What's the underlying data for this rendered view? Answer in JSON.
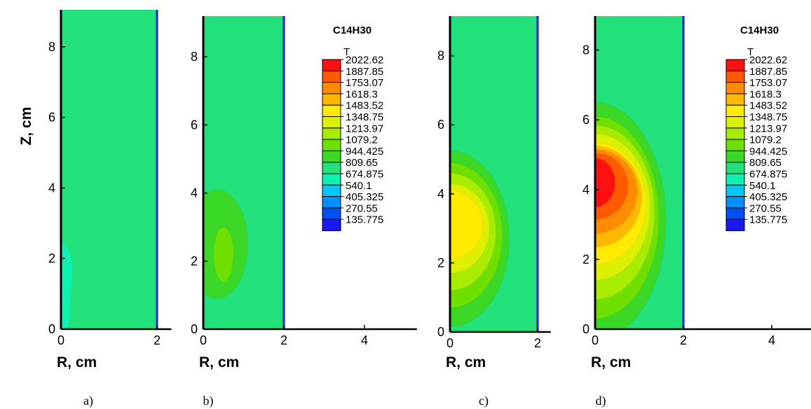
{
  "chart_data": [
    {
      "panel": "a)",
      "type": "heatmap",
      "xlabel": "R, cm",
      "ylabel": "Z, cm",
      "xlim": [
        0,
        2.3
      ],
      "ylim": [
        0,
        9.4
      ],
      "x_ticks": [
        "0",
        "2"
      ],
      "y_ticks": [
        "0",
        "2",
        "4",
        "6",
        "8"
      ],
      "background_level": 809.65,
      "features": [
        {
          "shape": "thin cool region near axis",
          "level": 674.875,
          "r_max": 0.25,
          "z_range": [
            0,
            2.5
          ]
        }
      ],
      "wall": {
        "r": 2,
        "level": 135.775
      }
    },
    {
      "panel": "b)",
      "type": "heatmap",
      "title": "C14H30",
      "xlabel": "R, cm",
      "xlim": [
        0,
        5.3
      ],
      "ylim": [
        0,
        9.4
      ],
      "x_ticks": [
        "0",
        "2",
        "4"
      ],
      "y_ticks": [
        "0",
        "2",
        "4",
        "6",
        "8"
      ],
      "background_level": 809.65,
      "features": [
        {
          "shape": "ellipse",
          "level": 944.425,
          "r_center": 0.35,
          "z_center": 2.5,
          "r_radius": 0.75,
          "z_radius": 1.6
        },
        {
          "shape": "ellipse",
          "level": 1079.2,
          "r_center": 0.5,
          "z_center": 2.2,
          "r_radius": 0.25,
          "z_radius": 0.8
        }
      ],
      "wall": {
        "r": 2,
        "level": 135.775
      },
      "legend": {
        "title": "T",
        "levels": [
          2022.62,
          1887.85,
          1753.07,
          1618.3,
          1483.52,
          1348.75,
          1213.97,
          1079.2,
          944.425,
          809.65,
          674.875,
          540.1,
          405.325,
          270.55,
          135.775
        ],
        "labels": [
          "2022.62",
          "1887.85",
          "1753.07",
          "1618.3",
          "1483.52",
          "1348.75",
          "1213.97",
          "1079.2",
          "944.425",
          "809.65",
          "674.875",
          "540.1",
          "405.325",
          "270.55",
          "135.775"
        ],
        "colors": [
          "#ff1010",
          "#ff5a00",
          "#ff8c00",
          "#ffb800",
          "#ffea00",
          "#dcf000",
          "#a8ec00",
          "#6ee000",
          "#3cd828",
          "#22e07a",
          "#10f0b0",
          "#00c8ff",
          "#0090ff",
          "#0050f5",
          "#1a18f0"
        ]
      }
    },
    {
      "panel": "c)",
      "type": "heatmap",
      "xlabel": "R, cm",
      "xlim": [
        0,
        2.3
      ],
      "ylim": [
        0,
        9.4
      ],
      "x_ticks": [
        "0",
        "2"
      ],
      "y_ticks": [
        "0",
        "2",
        "4",
        "6",
        "8"
      ],
      "background_level": 809.65,
      "features": [
        {
          "shape": "ellipse",
          "level": 944.425,
          "r_center": 0,
          "z_center": 2.7,
          "r_radius": 1.35,
          "z_radius": 2.55
        },
        {
          "shape": "ellipse",
          "level": 1079.2,
          "r_center": 0,
          "z_center": 2.8,
          "r_radius": 1.2,
          "z_radius": 2.1
        },
        {
          "shape": "ellipse",
          "level": 1213.97,
          "r_center": 0,
          "z_center": 2.9,
          "r_radius": 1.05,
          "z_radius": 1.7
        },
        {
          "shape": "ellipse",
          "level": 1348.75,
          "r_center": 0,
          "z_center": 3.0,
          "r_radius": 0.9,
          "z_radius": 1.3
        },
        {
          "shape": "ellipse",
          "level": 1483.52,
          "r_center": 0,
          "z_center": 3.1,
          "r_radius": 0.75,
          "z_radius": 1.0
        }
      ],
      "wall": {
        "r": 2,
        "level": 135.775
      }
    },
    {
      "panel": "d)",
      "type": "heatmap",
      "title": "C14H30",
      "xlabel": "R, cm",
      "xlim": [
        0,
        5.3
      ],
      "ylim": [
        0,
        9.4
      ],
      "x_ticks": [
        "0",
        "2",
        "4"
      ],
      "y_ticks": [
        "0",
        "2",
        "4",
        "6",
        "8"
      ],
      "background_level": 809.65,
      "features": [
        {
          "shape": "ellipse",
          "level": 944.425,
          "r_center": 0,
          "z_center": 3.1,
          "r_radius": 1.6,
          "z_radius": 3.4
        },
        {
          "shape": "ellipse",
          "level": 1079.2,
          "r_center": 0,
          "z_center": 3.2,
          "r_radius": 1.45,
          "z_radius": 2.9
        },
        {
          "shape": "ellipse",
          "level": 1213.97,
          "r_center": 0,
          "z_center": 3.35,
          "r_radius": 1.35,
          "z_radius": 2.5
        },
        {
          "shape": "ellipse",
          "level": 1348.75,
          "r_center": 0,
          "z_center": 3.5,
          "r_radius": 1.25,
          "z_radius": 2.1
        },
        {
          "shape": "ellipse",
          "level": 1483.52,
          "r_center": 0,
          "z_center": 3.6,
          "r_radius": 1.15,
          "z_radius": 1.75
        },
        {
          "shape": "ellipse",
          "level": 1618.3,
          "r_center": 0,
          "z_center": 3.8,
          "r_radius": 1.05,
          "z_radius": 1.45
        },
        {
          "shape": "ellipse",
          "level": 1753.07,
          "r_center": 0,
          "z_center": 3.95,
          "r_radius": 0.95,
          "z_radius": 1.2
        },
        {
          "shape": "ellipse",
          "level": 1887.85,
          "r_center": 0,
          "z_center": 4.1,
          "r_radius": 0.75,
          "z_radius": 0.95
        },
        {
          "shape": "ellipse",
          "level": 2022.62,
          "r_center": 0,
          "z_center": 4.2,
          "r_radius": 0.45,
          "z_radius": 0.7
        }
      ],
      "wall": {
        "r": 2,
        "level": 135.775
      },
      "legend": {
        "title": "T",
        "levels": [
          2022.62,
          1887.85,
          1753.07,
          1618.3,
          1483.52,
          1348.75,
          1213.97,
          1079.2,
          944.425,
          809.65,
          674.875,
          540.1,
          405.325,
          270.55,
          135.775
        ],
        "labels": [
          "2022.62",
          "1887.85",
          "1753.07",
          "1618.3",
          "1483.52",
          "1348.75",
          "1213.97",
          "1079.2",
          "944.425",
          "809.65",
          "674.875",
          "540.1",
          "405.325",
          "270.55",
          "135.775"
        ],
        "colors": [
          "#ff1010",
          "#ff5a00",
          "#ff8c00",
          "#ffb800",
          "#ffea00",
          "#dcf000",
          "#a8ec00",
          "#6ee000",
          "#3cd828",
          "#22e07a",
          "#10f0b0",
          "#00c8ff",
          "#0090ff",
          "#0050f5",
          "#1a18f0"
        ]
      }
    }
  ]
}
